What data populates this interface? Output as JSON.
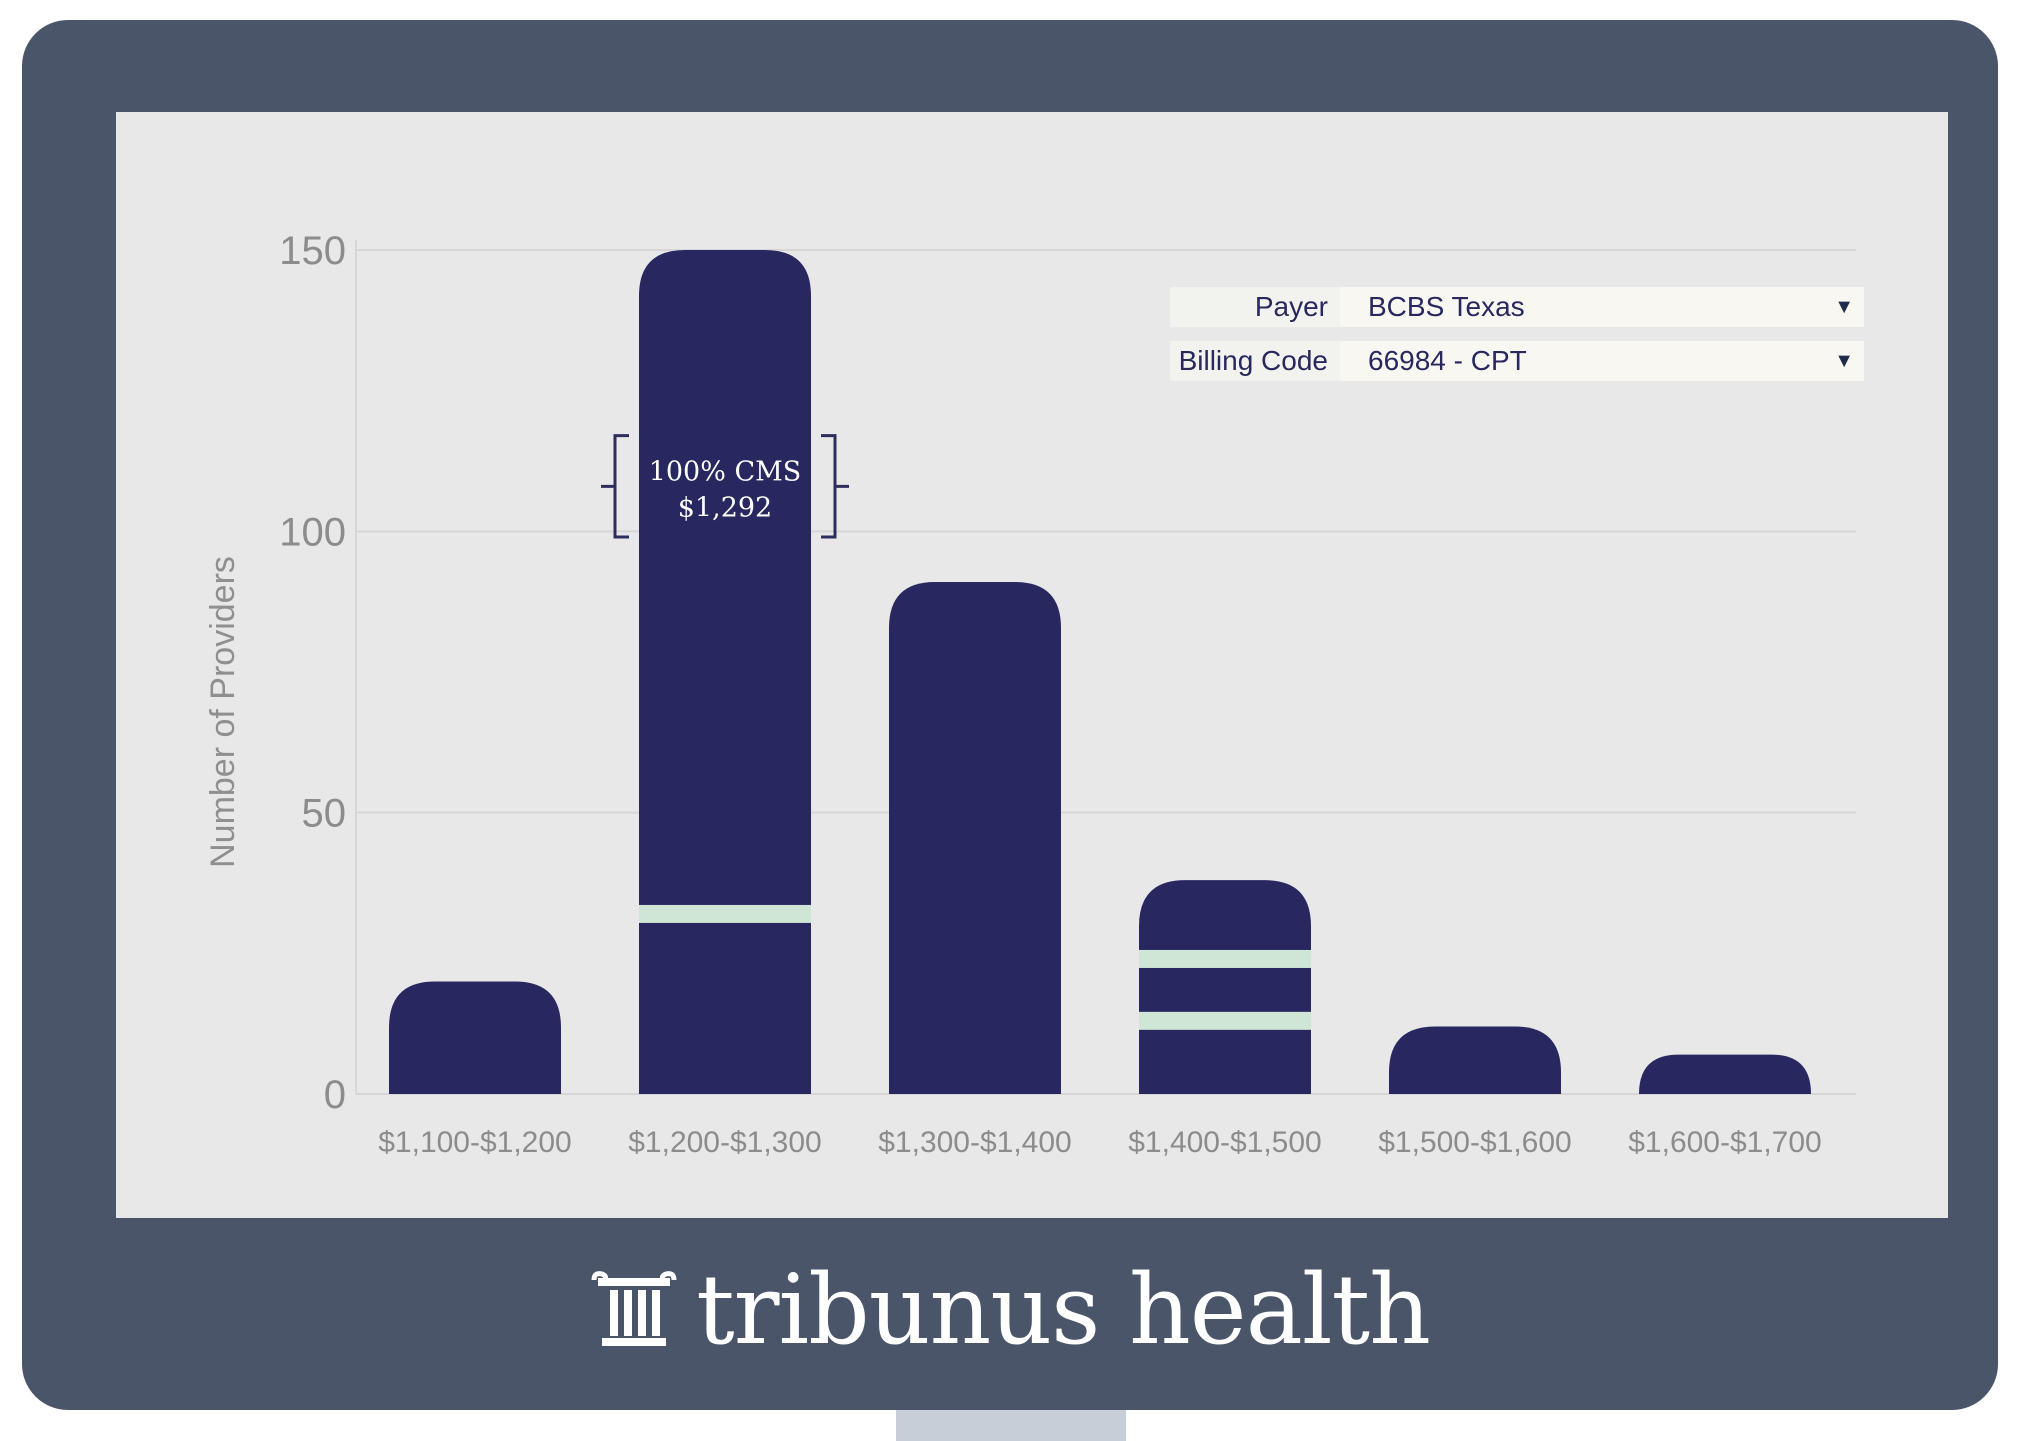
{
  "filters": {
    "payer": {
      "label": "Payer",
      "value": "BCBS Texas"
    },
    "billing_code": {
      "label": "Billing Code",
      "value": "66984 - CPT"
    }
  },
  "reference_marker": {
    "line1": "100% CMS",
    "line2": "$1,292",
    "value": 1292
  },
  "brand": {
    "name": "tribunus health",
    "logo_icon": "column-icon"
  },
  "colors": {
    "bar": "#28275f",
    "highlight": "#cfe6d6",
    "frame": "#4a5569",
    "screen": "#e8e8e8",
    "axis_text": "#8c8c8c"
  },
  "chart_data": {
    "type": "bar",
    "ylabel": "Number of Providers",
    "xlabel": "",
    "ylim": [
      0,
      150
    ],
    "yticks": [
      0,
      50,
      100,
      150
    ],
    "grid": true,
    "categories": [
      "$1,100-$1,200",
      "$1,200-$1,300",
      "$1,300-$1,400",
      "$1,400-$1,500",
      "$1,500-$1,600",
      "$1,600-$1,700"
    ],
    "values": [
      20,
      150,
      91,
      38,
      12,
      7
    ],
    "highlight_marks": [
      {
        "category": "$1,200-$1,300",
        "values": [
          32
        ]
      },
      {
        "category": "$1,400-$1,500",
        "values": [
          24,
          13
        ]
      }
    ]
  }
}
